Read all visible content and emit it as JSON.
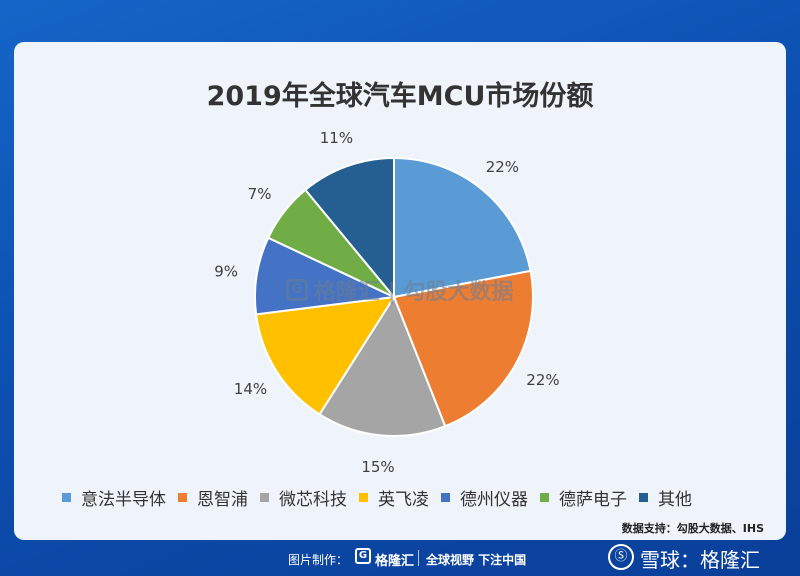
{
  "chart_data": {
    "type": "pie",
    "title": "2019年全球汽车MCU市场份额",
    "categories": [
      "意法半导体",
      "恩智浦",
      "微芯科技",
      "英飞凌",
      "德州仪器",
      "德萨电子",
      "其他"
    ],
    "values": [
      22,
      22,
      15,
      14,
      9,
      7,
      11
    ],
    "value_labels": [
      "22%",
      "22%",
      "15%",
      "14%",
      "9%",
      "7%",
      "11%"
    ],
    "colors": [
      "#5b9bd5",
      "#ed7d31",
      "#a5a5a5",
      "#ffc000",
      "#4472c4",
      "#70ad47",
      "#255e91"
    ],
    "legend_position": "bottom"
  },
  "source": "数据支持：勾股大数据、IHS",
  "watermark": {
    "logo": "G",
    "text": "格隆汇 | 勾股大数据"
  },
  "footer": {
    "made_by": "图片制作：",
    "brand_logo": "G",
    "brand": "格隆汇",
    "slogan": "全球视野 下注中国",
    "xueqiu_icon": "Ⓢ",
    "xueqiu": "雪球：格隆汇"
  }
}
